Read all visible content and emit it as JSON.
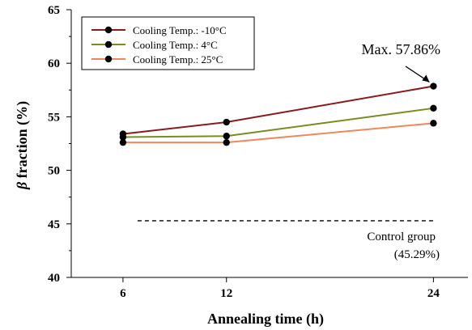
{
  "chart_data": {
    "type": "line",
    "xlabel": "Annealing time (h)",
    "ylabel_symbol": "β",
    "ylabel_text": " fraction (%)",
    "x": [
      6,
      12,
      24
    ],
    "x_ticks": [
      "6",
      "12",
      "24"
    ],
    "ylim": [
      40,
      65
    ],
    "y_ticks": [
      40,
      45,
      50,
      55,
      60,
      65
    ],
    "grid": false,
    "legend_position": "top-left",
    "series": [
      {
        "name": "Cooling Temp.: -10°C",
        "color": "#8B1A1A",
        "values": [
          53.4,
          54.5,
          57.86
        ]
      },
      {
        "name": "Cooling Temp.: 4°C",
        "color": "#7B8C1E",
        "values": [
          53.1,
          53.2,
          55.8
        ]
      },
      {
        "name": "Cooling Temp.: 25°C",
        "color": "#F0875A",
        "values": [
          52.6,
          52.6,
          54.4
        ]
      }
    ],
    "control": {
      "value": 45.29,
      "label": "Control group",
      "value_label": "(45.29%)",
      "style": "dashed",
      "color": "#000000"
    },
    "annotation_max": "Max. 57.86%"
  }
}
